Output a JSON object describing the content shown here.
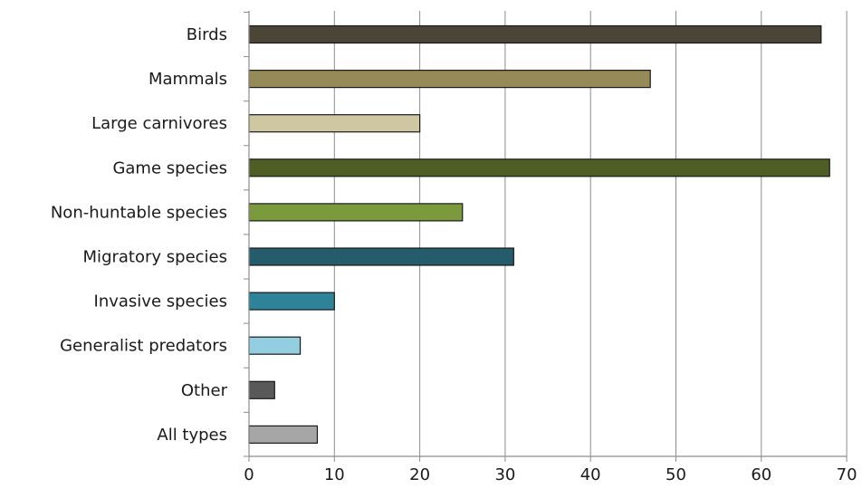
{
  "chart_data": {
    "type": "bar",
    "orientation": "horizontal",
    "title": "",
    "xlabel": "",
    "ylabel": "",
    "xlim": [
      0,
      70
    ],
    "x_ticks": [
      0,
      10,
      20,
      30,
      40,
      50,
      60,
      70
    ],
    "grid": "vertical",
    "legend": "none",
    "categories": [
      "Birds",
      "Mammals",
      "Large carnivores",
      "Game species",
      "Non-huntable species",
      "Migratory species",
      "Invasive species",
      "Generalist predators",
      "Other",
      "All types"
    ],
    "values": [
      67,
      47,
      20,
      68,
      25,
      31,
      10,
      6,
      3,
      8
    ],
    "colors": [
      "#4a4536",
      "#968a58",
      "#cfc7a1",
      "#4e5e25",
      "#7b9a3e",
      "#245c6c",
      "#2e8399",
      "#93cde0",
      "#595959",
      "#a6a6a6"
    ]
  }
}
